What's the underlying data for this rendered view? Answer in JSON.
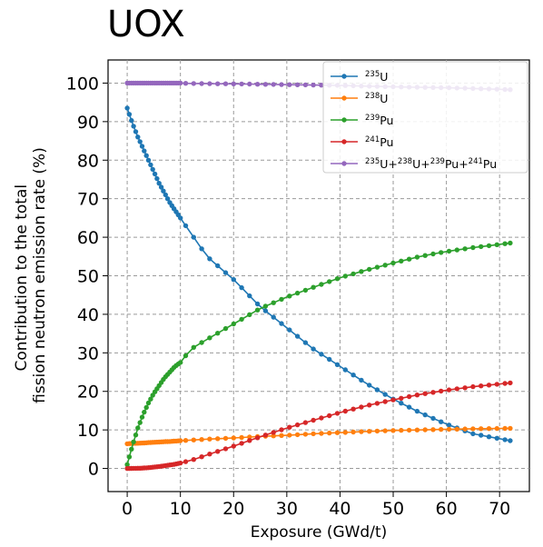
{
  "chart_data": {
    "type": "line",
    "title": "UOX",
    "xlabel": "Exposure (GWd/t)",
    "ylabel": [
      "Contribution to the total",
      "fission neutron emission rate (%)"
    ],
    "xlim": [
      -3.6,
      75.6
    ],
    "ylim": [
      -6,
      106
    ],
    "xticks": [
      0,
      10,
      20,
      30,
      40,
      50,
      60,
      70
    ],
    "yticks": [
      0,
      10,
      20,
      30,
      40,
      50,
      60,
      70,
      80,
      90,
      100
    ],
    "grid": true,
    "grid_style": "dashed",
    "legend_position": "top-right",
    "x_breakpoints": [
      0,
      0.5,
      1,
      2,
      3,
      4,
      5,
      6,
      7,
      8,
      9,
      10,
      12,
      15,
      20,
      25,
      30,
      35,
      40,
      45,
      50,
      55,
      60,
      65,
      72
    ],
    "series": [
      {
        "name_parts": [
          {
            "sup": "235"
          },
          {
            "t": "U"
          }
        ],
        "color": "#1f77b4",
        "y_breakpoints": [
          93.5,
          91.5,
          89.5,
          86,
          83,
          80,
          77,
          74,
          71.5,
          69,
          67,
          65,
          61,
          55,
          49,
          42,
          36.5,
          31,
          26.5,
          22,
          18,
          14.5,
          11.5,
          9,
          7.2
        ]
      },
      {
        "name_parts": [
          {
            "sup": "238"
          },
          {
            "t": "U"
          }
        ],
        "color": "#ff7f0e",
        "y_breakpoints": [
          6.4,
          6.45,
          6.5,
          6.55,
          6.6,
          6.7,
          6.8,
          6.85,
          6.95,
          7.0,
          7.1,
          7.2,
          7.35,
          7.6,
          7.9,
          8.3,
          8.6,
          9.0,
          9.3,
          9.6,
          9.85,
          10.0,
          10.15,
          10.3,
          10.4
        ]
      },
      {
        "name_parts": [
          {
            "sup": "239"
          },
          {
            "t": "Pu"
          }
        ],
        "color": "#2ca02c",
        "y_breakpoints": [
          1,
          3.5,
          6,
          10.5,
          14,
          17,
          19.5,
          21.5,
          23.5,
          25,
          26.5,
          27.5,
          31,
          33.5,
          37.5,
          41.5,
          44.5,
          47,
          49.5,
          51.5,
          53.3,
          55,
          56.3,
          57.3,
          58.5
        ]
      },
      {
        "name_parts": [
          {
            "sup": "241"
          },
          {
            "t": "Pu"
          }
        ],
        "color": "#d62728",
        "y_breakpoints": [
          0,
          0,
          0.02,
          0.05,
          0.1,
          0.2,
          0.35,
          0.5,
          0.7,
          0.9,
          1.1,
          1.4,
          2.1,
          3.5,
          5.8,
          8.2,
          10.5,
          12.5,
          14.5,
          16.3,
          17.8,
          19.2,
          20.3,
          21.2,
          22.2
        ]
      },
      {
        "name_parts": [
          {
            "sup": "235"
          },
          {
            "t": "U+"
          },
          {
            "sup": "238"
          },
          {
            "t": "U+"
          },
          {
            "sup": "239"
          },
          {
            "t": "Pu+"
          },
          {
            "sup": "241"
          },
          {
            "t": "Pu"
          }
        ],
        "color": "#9467bd",
        "y_breakpoints": [
          100,
          100,
          100,
          100,
          100,
          100,
          100,
          100,
          100,
          100,
          100,
          100,
          99.9,
          99.85,
          99.8,
          99.7,
          99.6,
          99.5,
          99.4,
          99.2,
          99.05,
          98.9,
          98.8,
          98.6,
          98.3
        ]
      }
    ]
  }
}
